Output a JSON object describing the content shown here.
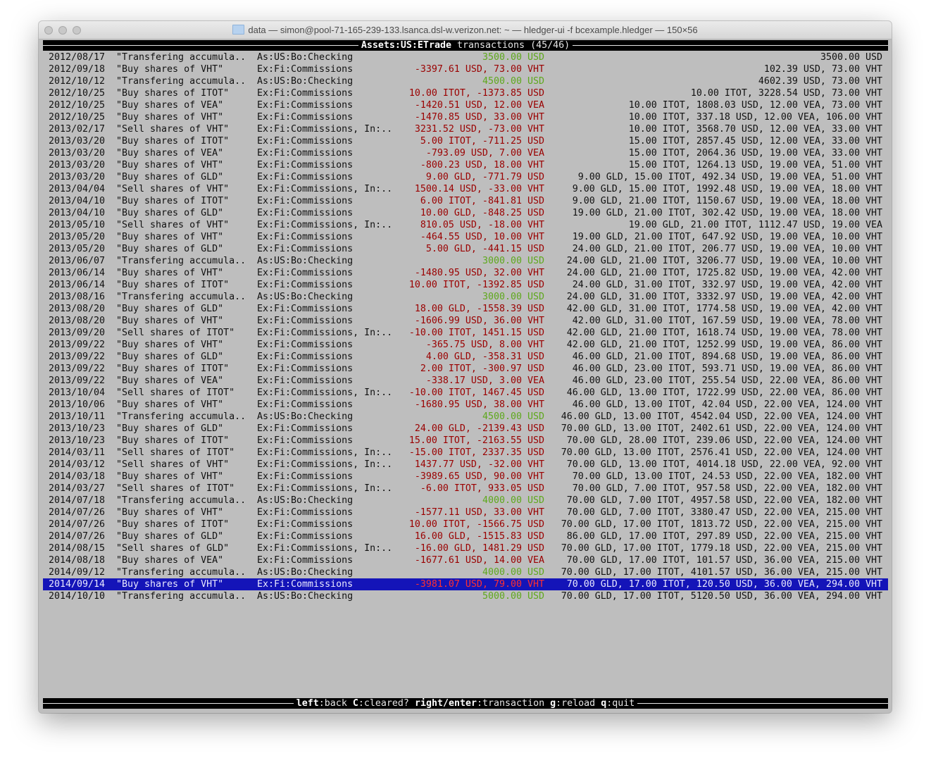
{
  "window": {
    "title": "data — simon@pool-71-165-239-133.lsanca.dsl-w.verizon.net: ~ — hledger-ui -f bcexample.hledger — 150×56"
  },
  "header": {
    "account": "Assets:US:ETrade",
    "label": "transactions",
    "position": "(45/46)"
  },
  "colors": {
    "negative": "#9a0000",
    "positive": "#5ea81c",
    "selection": "#1414b8",
    "background": "#bebebe"
  },
  "selected_index": 44,
  "rows": [
    [
      "2012/08/17",
      "\"Transfering accumula..",
      "As:US:Bo:Checking",
      "3500.00 USD",
      "3500.00 USD"
    ],
    [
      "2012/09/18",
      "\"Buy shares of VHT\"",
      "Ex:Fi:Commissions",
      "-3397.61 USD, 73.00 VHT",
      "102.39 USD, 73.00 VHT"
    ],
    [
      "2012/10/12",
      "\"Transfering accumula..",
      "As:US:Bo:Checking",
      "4500.00 USD",
      "4602.39 USD, 73.00 VHT"
    ],
    [
      "2012/10/25",
      "\"Buy shares of ITOT\"",
      "Ex:Fi:Commissions",
      "10.00 ITOT, -1373.85 USD",
      "10.00 ITOT, 3228.54 USD, 73.00 VHT"
    ],
    [
      "2012/10/25",
      "\"Buy shares of VEA\"",
      "Ex:Fi:Commissions",
      "-1420.51 USD, 12.00 VEA",
      "10.00 ITOT, 1808.03 USD, 12.00 VEA, 73.00 VHT"
    ],
    [
      "2012/10/25",
      "\"Buy shares of VHT\"",
      "Ex:Fi:Commissions",
      "-1470.85 USD, 33.00 VHT",
      "10.00 ITOT, 337.18 USD, 12.00 VEA, 106.00 VHT"
    ],
    [
      "2013/02/17",
      "\"Sell shares of VHT\"",
      "Ex:Fi:Commissions, In:..",
      "3231.52 USD, -73.00 VHT",
      "10.00 ITOT, 3568.70 USD, 12.00 VEA, 33.00 VHT"
    ],
    [
      "2013/03/20",
      "\"Buy shares of ITOT\"",
      "Ex:Fi:Commissions",
      "5.00 ITOT, -711.25 USD",
      "15.00 ITOT, 2857.45 USD, 12.00 VEA, 33.00 VHT"
    ],
    [
      "2013/03/20",
      "\"Buy shares of VEA\"",
      "Ex:Fi:Commissions",
      "-793.09 USD, 7.00 VEA",
      "15.00 ITOT, 2064.36 USD, 19.00 VEA, 33.00 VHT"
    ],
    [
      "2013/03/20",
      "\"Buy shares of VHT\"",
      "Ex:Fi:Commissions",
      "-800.23 USD, 18.00 VHT",
      "15.00 ITOT, 1264.13 USD, 19.00 VEA, 51.00 VHT"
    ],
    [
      "2013/03/20",
      "\"Buy shares of GLD\"",
      "Ex:Fi:Commissions",
      "9.00 GLD, -771.79 USD",
      "9.00 GLD, 15.00 ITOT, 492.34 USD, 19.00 VEA, 51.00 VHT"
    ],
    [
      "2013/04/04",
      "\"Sell shares of VHT\"",
      "Ex:Fi:Commissions, In:..",
      "1500.14 USD, -33.00 VHT",
      "9.00 GLD, 15.00 ITOT, 1992.48 USD, 19.00 VEA, 18.00 VHT"
    ],
    [
      "2013/04/10",
      "\"Buy shares of ITOT\"",
      "Ex:Fi:Commissions",
      "6.00 ITOT, -841.81 USD",
      "9.00 GLD, 21.00 ITOT, 1150.67 USD, 19.00 VEA, 18.00 VHT"
    ],
    [
      "2013/04/10",
      "\"Buy shares of GLD\"",
      "Ex:Fi:Commissions",
      "10.00 GLD, -848.25 USD",
      "19.00 GLD, 21.00 ITOT, 302.42 USD, 19.00 VEA, 18.00 VHT"
    ],
    [
      "2013/05/10",
      "\"Sell shares of VHT\"",
      "Ex:Fi:Commissions, In:..",
      "810.05 USD, -18.00 VHT",
      "19.00 GLD, 21.00 ITOT, 1112.47 USD, 19.00 VEA"
    ],
    [
      "2013/05/20",
      "\"Buy shares of VHT\"",
      "Ex:Fi:Commissions",
      "-464.55 USD, 10.00 VHT",
      "19.00 GLD, 21.00 ITOT, 647.92 USD, 19.00 VEA, 10.00 VHT"
    ],
    [
      "2013/05/20",
      "\"Buy shares of GLD\"",
      "Ex:Fi:Commissions",
      "5.00 GLD, -441.15 USD",
      "24.00 GLD, 21.00 ITOT, 206.77 USD, 19.00 VEA, 10.00 VHT"
    ],
    [
      "2013/06/07",
      "\"Transfering accumula..",
      "As:US:Bo:Checking",
      "3000.00 USD",
      "24.00 GLD, 21.00 ITOT, 3206.77 USD, 19.00 VEA, 10.00 VHT"
    ],
    [
      "2013/06/14",
      "\"Buy shares of VHT\"",
      "Ex:Fi:Commissions",
      "-1480.95 USD, 32.00 VHT",
      "24.00 GLD, 21.00 ITOT, 1725.82 USD, 19.00 VEA, 42.00 VHT"
    ],
    [
      "2013/06/14",
      "\"Buy shares of ITOT\"",
      "Ex:Fi:Commissions",
      "10.00 ITOT, -1392.85 USD",
      "24.00 GLD, 31.00 ITOT, 332.97 USD, 19.00 VEA, 42.00 VHT"
    ],
    [
      "2013/08/16",
      "\"Transfering accumula..",
      "As:US:Bo:Checking",
      "3000.00 USD",
      "24.00 GLD, 31.00 ITOT, 3332.97 USD, 19.00 VEA, 42.00 VHT"
    ],
    [
      "2013/08/20",
      "\"Buy shares of GLD\"",
      "Ex:Fi:Commissions",
      "18.00 GLD, -1558.39 USD",
      "42.00 GLD, 31.00 ITOT, 1774.58 USD, 19.00 VEA, 42.00 VHT"
    ],
    [
      "2013/08/20",
      "\"Buy shares of VHT\"",
      "Ex:Fi:Commissions",
      "-1606.99 USD, 36.00 VHT",
      "42.00 GLD, 31.00 ITOT, 167.59 USD, 19.00 VEA, 78.00 VHT"
    ],
    [
      "2013/09/20",
      "\"Sell shares of ITOT\"",
      "Ex:Fi:Commissions, In:..",
      "-10.00 ITOT, 1451.15 USD",
      "42.00 GLD, 21.00 ITOT, 1618.74 USD, 19.00 VEA, 78.00 VHT"
    ],
    [
      "2013/09/22",
      "\"Buy shares of VHT\"",
      "Ex:Fi:Commissions",
      "-365.75 USD, 8.00 VHT",
      "42.00 GLD, 21.00 ITOT, 1252.99 USD, 19.00 VEA, 86.00 VHT"
    ],
    [
      "2013/09/22",
      "\"Buy shares of GLD\"",
      "Ex:Fi:Commissions",
      "4.00 GLD, -358.31 USD",
      "46.00 GLD, 21.00 ITOT, 894.68 USD, 19.00 VEA, 86.00 VHT"
    ],
    [
      "2013/09/22",
      "\"Buy shares of ITOT\"",
      "Ex:Fi:Commissions",
      "2.00 ITOT, -300.97 USD",
      "46.00 GLD, 23.00 ITOT, 593.71 USD, 19.00 VEA, 86.00 VHT"
    ],
    [
      "2013/09/22",
      "\"Buy shares of VEA\"",
      "Ex:Fi:Commissions",
      "-338.17 USD, 3.00 VEA",
      "46.00 GLD, 23.00 ITOT, 255.54 USD, 22.00 VEA, 86.00 VHT"
    ],
    [
      "2013/10/04",
      "\"Sell shares of ITOT\"",
      "Ex:Fi:Commissions, In:..",
      "-10.00 ITOT, 1467.45 USD",
      "46.00 GLD, 13.00 ITOT, 1722.99 USD, 22.00 VEA, 86.00 VHT"
    ],
    [
      "2013/10/06",
      "\"Buy shares of VHT\"",
      "Ex:Fi:Commissions",
      "-1680.95 USD, 38.00 VHT",
      "46.00 GLD, 13.00 ITOT, 42.04 USD, 22.00 VEA, 124.00 VHT"
    ],
    [
      "2013/10/11",
      "\"Transfering accumula..",
      "As:US:Bo:Checking",
      "4500.00 USD",
      "46.00 GLD, 13.00 ITOT, 4542.04 USD, 22.00 VEA, 124.00 VHT"
    ],
    [
      "2013/10/23",
      "\"Buy shares of GLD\"",
      "Ex:Fi:Commissions",
      "24.00 GLD, -2139.43 USD",
      "70.00 GLD, 13.00 ITOT, 2402.61 USD, 22.00 VEA, 124.00 VHT"
    ],
    [
      "2013/10/23",
      "\"Buy shares of ITOT\"",
      "Ex:Fi:Commissions",
      "15.00 ITOT, -2163.55 USD",
      "70.00 GLD, 28.00 ITOT, 239.06 USD, 22.00 VEA, 124.00 VHT"
    ],
    [
      "2014/03/11",
      "\"Sell shares of ITOT\"",
      "Ex:Fi:Commissions, In:..",
      "-15.00 ITOT, 2337.35 USD",
      "70.00 GLD, 13.00 ITOT, 2576.41 USD, 22.00 VEA, 124.00 VHT"
    ],
    [
      "2014/03/12",
      "\"Sell shares of VHT\"",
      "Ex:Fi:Commissions, In:..",
      "1437.77 USD, -32.00 VHT",
      "70.00 GLD, 13.00 ITOT, 4014.18 USD, 22.00 VEA, 92.00 VHT"
    ],
    [
      "2014/03/18",
      "\"Buy shares of VHT\"",
      "Ex:Fi:Commissions",
      "-3989.65 USD, 90.00 VHT",
      "70.00 GLD, 13.00 ITOT, 24.53 USD, 22.00 VEA, 182.00 VHT"
    ],
    [
      "2014/03/27",
      "\"Sell shares of ITOT\"",
      "Ex:Fi:Commissions, In:..",
      "-6.00 ITOT, 933.05 USD",
      "70.00 GLD, 7.00 ITOT, 957.58 USD, 22.00 VEA, 182.00 VHT"
    ],
    [
      "2014/07/18",
      "\"Transfering accumula..",
      "As:US:Bo:Checking",
      "4000.00 USD",
      "70.00 GLD, 7.00 ITOT, 4957.58 USD, 22.00 VEA, 182.00 VHT"
    ],
    [
      "2014/07/26",
      "\"Buy shares of VHT\"",
      "Ex:Fi:Commissions",
      "-1577.11 USD, 33.00 VHT",
      "70.00 GLD, 7.00 ITOT, 3380.47 USD, 22.00 VEA, 215.00 VHT"
    ],
    [
      "2014/07/26",
      "\"Buy shares of ITOT\"",
      "Ex:Fi:Commissions",
      "10.00 ITOT, -1566.75 USD",
      "70.00 GLD, 17.00 ITOT, 1813.72 USD, 22.00 VEA, 215.00 VHT"
    ],
    [
      "2014/07/26",
      "\"Buy shares of GLD\"",
      "Ex:Fi:Commissions",
      "16.00 GLD, -1515.83 USD",
      "86.00 GLD, 17.00 ITOT, 297.89 USD, 22.00 VEA, 215.00 VHT"
    ],
    [
      "2014/08/15",
      "\"Sell shares of GLD\"",
      "Ex:Fi:Commissions, In:..",
      "-16.00 GLD, 1481.29 USD",
      "70.00 GLD, 17.00 ITOT, 1779.18 USD, 22.00 VEA, 215.00 VHT"
    ],
    [
      "2014/08/18",
      "\"Buy shares of VEA\"",
      "Ex:Fi:Commissions",
      "-1677.61 USD, 14.00 VEA",
      "70.00 GLD, 17.00 ITOT, 101.57 USD, 36.00 VEA, 215.00 VHT"
    ],
    [
      "2014/09/12",
      "\"Transfering accumula..",
      "As:US:Bo:Checking",
      "4000.00 USD",
      "70.00 GLD, 17.00 ITOT, 4101.57 USD, 36.00 VEA, 215.00 VHT"
    ],
    [
      "2014/09/14",
      "\"Buy shares of VHT\"",
      "Ex:Fi:Commissions",
      "-3981.07 USD, 79.00 VHT",
      "70.00 GLD, 17.00 ITOT, 120.50 USD, 36.00 VEA, 294.00 VHT"
    ],
    [
      "2014/10/10",
      "\"Transfering accumula..",
      "As:US:Bo:Checking",
      "5000.00 USD",
      "70.00 GLD, 17.00 ITOT, 5120.50 USD, 36.00 VEA, 294.00 VHT"
    ]
  ],
  "footer": {
    "keys": [
      {
        "key": "left",
        "action": "back"
      },
      {
        "key": "C",
        "action": "cleared?"
      },
      {
        "key": "right/enter",
        "action": "transaction"
      },
      {
        "key": "g",
        "action": "reload"
      },
      {
        "key": "q",
        "action": "quit"
      }
    ]
  }
}
